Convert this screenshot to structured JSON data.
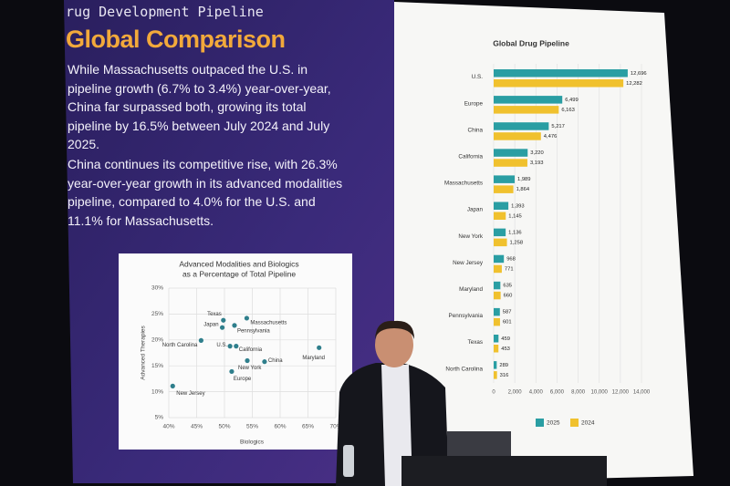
{
  "slide": {
    "kicker": "Drug Development Pipeline",
    "title": "Global Comparison",
    "paragraphs": [
      "While Massachusetts outpaced the U.S. in pipeline growth (6.7% to 3.4%) year-over-year, China far surpassed both, growing its total pipeline by 16.5% between July 2024 and July 2025.",
      "China continues its competitive rise, with 26.3% year-over-year growth in its advanced modalities pipeline, compared to 4.0% for the U.S. and 11.1% for Massachusetts."
    ]
  },
  "chart_data": [
    {
      "type": "scatter",
      "title": [
        "Advanced Modalities and Biologics",
        "as a Percentage of Total Pipeline"
      ],
      "x_label": "Biologics",
      "y_label": "Advanced Therapies",
      "categories": [
        "Texas",
        "Massachusetts",
        "Japan",
        "Pennsylvania",
        "North Carolina",
        "U.S.",
        "California",
        "Maryland",
        "China",
        "New York",
        "Europe",
        "New Jersey"
      ],
      "x": [
        49.8,
        54,
        49.6,
        51.8,
        45.8,
        51,
        52.1,
        67,
        57.2,
        54.1,
        51.3,
        40.7
      ],
      "values": [
        23.8,
        24.2,
        22.4,
        22.8,
        19.9,
        18.8,
        18.8,
        18.5,
        15.8,
        16,
        13.9,
        11.1
      ],
      "color": "#2f7f8c",
      "xlim": [
        40,
        70
      ],
      "xticks": [
        {
          "value": 40,
          "label": "40%"
        },
        {
          "value": 45,
          "label": "45%"
        },
        {
          "value": 50,
          "label": "50%"
        },
        {
          "value": 55,
          "label": "55%"
        },
        {
          "value": 60,
          "label": "60%"
        },
        {
          "value": 65,
          "label": "65%"
        },
        {
          "value": 70,
          "label": "70%"
        }
      ],
      "ylim": [
        5,
        30
      ],
      "yticks": [
        {
          "value": 5,
          "label": "5%"
        },
        {
          "value": 10,
          "label": "10%"
        },
        {
          "value": 15,
          "label": "15%"
        },
        {
          "value": 20,
          "label": "20%"
        },
        {
          "value": 25,
          "label": "25%"
        },
        {
          "value": 30,
          "label": "30%"
        }
      ],
      "grid": true
    },
    {
      "type": "hbar",
      "title": "Global Drug Pipeline",
      "categories": [
        "U.S.",
        "Europe",
        "China",
        "California",
        "Massachusetts",
        "Japan",
        "New York",
        "New Jersey",
        "Maryland",
        "Pennsylvania",
        "Texas",
        "North Carolina"
      ],
      "series": [
        {
          "name": "2025",
          "color": "#2a9ea3",
          "values": [
            12696,
            6499,
            5217,
            3220,
            1989,
            1393,
            1136,
            968,
            635,
            587,
            459,
            289
          ],
          "value_labels": [
            "12,696",
            "6,499",
            "5,217",
            "3,220",
            "1,989",
            "1,393",
            "1,136",
            "968",
            "635",
            "587",
            "459",
            "289"
          ]
        },
        {
          "name": "2024",
          "color": "#f0c12e",
          "values": [
            12282,
            6163,
            4476,
            3193,
            1864,
            1145,
            1258,
            771,
            660,
            601,
            453,
            316
          ],
          "value_labels": [
            "12,282",
            "6,163",
            "4,476",
            "3,193",
            "1,864",
            "1,145",
            "1,258",
            "771",
            "660",
            "601",
            "453",
            "316"
          ]
        }
      ],
      "xlim": [
        0,
        14000
      ],
      "xticks": [
        0,
        {
          "value": 2000,
          "label": "2,000"
        },
        {
          "value": 4000,
          "label": "4,000"
        },
        {
          "value": 6000,
          "label": "6,000"
        },
        {
          "value": 8000,
          "label": "8,000"
        },
        {
          "value": 10000,
          "label": "10,000"
        },
        {
          "value": 12000,
          "label": "12,000"
        },
        {
          "value": 14000,
          "label": "14,000"
        }
      ],
      "grid": true,
      "legend": "bottom"
    }
  ]
}
